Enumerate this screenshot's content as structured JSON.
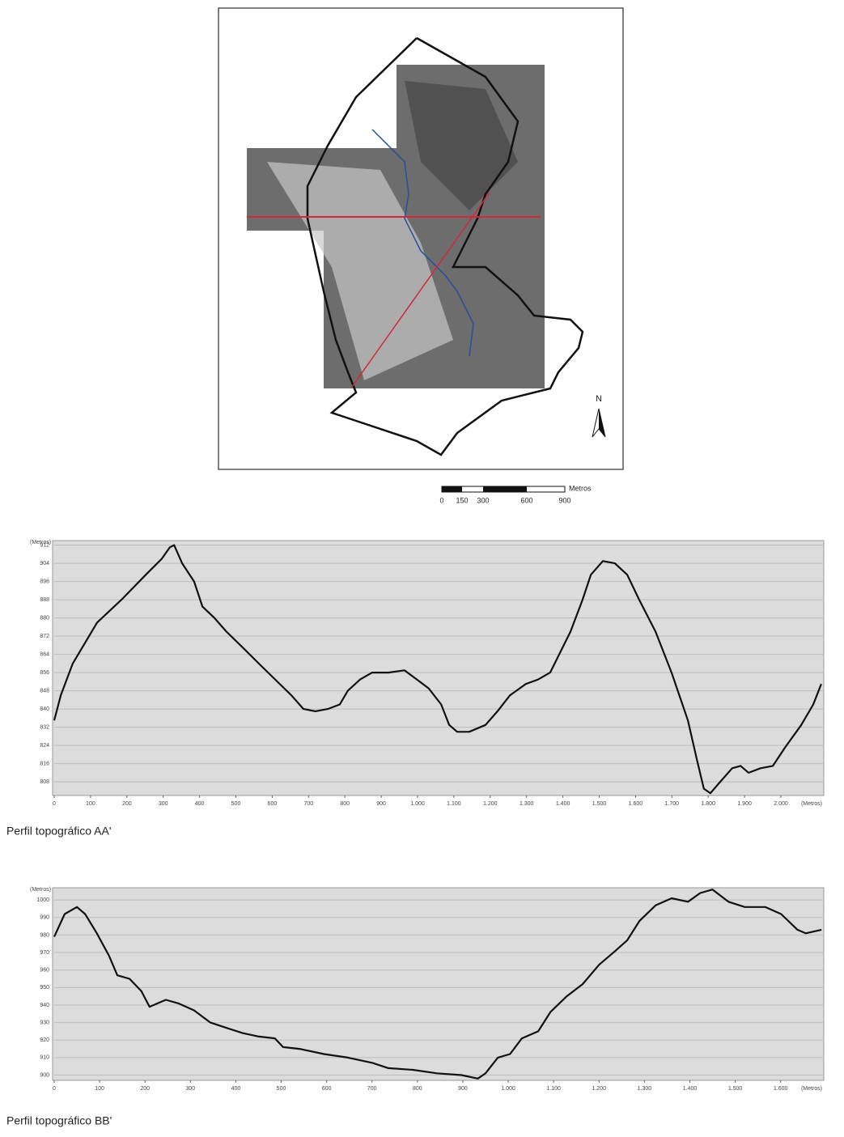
{
  "map": {
    "north": "N",
    "scale_labels": [
      0,
      150,
      300,
      600,
      900
    ],
    "scale_unit": "Metros"
  },
  "chart_data": [
    {
      "type": "line",
      "caption": "Perfil topográfico AA'",
      "y_label": "(Metros)",
      "x_label": "(Metros)",
      "grid": true,
      "xlim": [
        0,
        2118
      ],
      "ylim": [
        802,
        914
      ],
      "xticks": [
        0,
        100,
        200,
        300,
        400,
        500,
        600,
        700,
        800,
        900,
        {
          "value": 1000,
          "label": "1.000"
        },
        {
          "value": 1100,
          "label": "1.100"
        },
        {
          "value": 1200,
          "label": "1.200"
        },
        {
          "value": 1300,
          "label": "1.300"
        },
        {
          "value": 1400,
          "label": "1.400"
        },
        {
          "value": 1500,
          "label": "1.500"
        },
        {
          "value": 1600,
          "label": "1.600"
        },
        {
          "value": 1700,
          "label": "1.700"
        },
        {
          "value": 1800,
          "label": "1.800"
        },
        {
          "value": 1900,
          "label": "1.900"
        },
        {
          "value": 2000,
          "label": "2.000"
        }
      ],
      "yticks": [
        808,
        816,
        824,
        832,
        840,
        848,
        856,
        864,
        872,
        880,
        888,
        896,
        904,
        912
      ],
      "x": [
        0,
        18,
        51,
        118,
        185,
        252,
        296,
        318,
        330,
        352,
        385,
        408,
        441,
        474,
        519,
        563,
        608,
        653,
        686,
        719,
        753,
        786,
        808,
        842,
        875,
        920,
        964,
        998,
        1031,
        1065,
        1087,
        1109,
        1142,
        1187,
        1220,
        1254,
        1298,
        1332,
        1365,
        1399,
        1421,
        1454,
        1477,
        1510,
        1543,
        1577,
        1610,
        1655,
        1699,
        1744,
        1770,
        1788,
        1806,
        1833,
        1866,
        1889,
        1911,
        1944,
        1978,
        2011,
        2056,
        2089,
        2111
      ],
      "series": [
        {
          "color": "#111111",
          "values": [
            835,
            846,
            860,
            878,
            888,
            899,
            906,
            911,
            912,
            904,
            896,
            885,
            880,
            874,
            867,
            860,
            853,
            846,
            840,
            839,
            840,
            842,
            848,
            853,
            856,
            856,
            857,
            853,
            849,
            842,
            833,
            830,
            830,
            833,
            839,
            846,
            851,
            853,
            856,
            867,
            874,
            888,
            899,
            905,
            904,
            899,
            888,
            874,
            856,
            835,
            817,
            805,
            803,
            808,
            814,
            815,
            812,
            814,
            815,
            823,
            833,
            842,
            851
          ]
        }
      ]
    },
    {
      "type": "line",
      "caption": "Perfil topográfico BB'",
      "y_label": "(Metros)",
      "x_label": "(Metros)",
      "grid": true,
      "xlim": [
        0,
        1695
      ],
      "ylim": [
        897,
        1007
      ],
      "xticks": [
        0,
        100,
        200,
        300,
        400,
        500,
        600,
        700,
        800,
        900,
        {
          "value": 1000,
          "label": "1.000"
        },
        {
          "value": 1100,
          "label": "1.100"
        },
        {
          "value": 1200,
          "label": "1.200"
        },
        {
          "value": 1300,
          "label": "1.300"
        },
        {
          "value": 1400,
          "label": "1.400"
        },
        {
          "value": 1500,
          "label": "1.500"
        },
        {
          "value": 1600,
          "label": "1.600"
        }
      ],
      "yticks": [
        900,
        910,
        920,
        930,
        940,
        950,
        960,
        970,
        980,
        990,
        1000
      ],
      "x": [
        0,
        23,
        50,
        68,
        94,
        121,
        139,
        166,
        192,
        210,
        228,
        246,
        273,
        308,
        344,
        379,
        415,
        451,
        486,
        504,
        540,
        594,
        647,
        701,
        736,
        790,
        843,
        897,
        933,
        950,
        977,
        1004,
        1030,
        1066,
        1093,
        1129,
        1164,
        1200,
        1236,
        1262,
        1289,
        1325,
        1360,
        1396,
        1423,
        1450,
        1485,
        1521,
        1566,
        1601,
        1637,
        1655,
        1690
      ],
      "series": [
        {
          "color": "#111111",
          "values": [
            979,
            992,
            996,
            992,
            981,
            968,
            957,
            955,
            948,
            939,
            941,
            943,
            941,
            937,
            930,
            927,
            924,
            922,
            921,
            916,
            915,
            912,
            910,
            907,
            904,
            903,
            901,
            900,
            898,
            901,
            910,
            912,
            921,
            925,
            936,
            945,
            952,
            963,
            971,
            977,
            988,
            997,
            1001,
            999,
            1004,
            1006,
            999,
            996,
            996,
            992,
            983,
            981,
            983
          ]
        }
      ]
    }
  ]
}
